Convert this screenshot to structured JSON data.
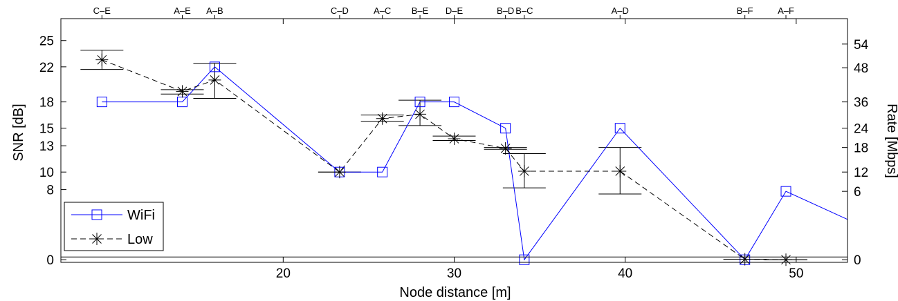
{
  "chart_data": {
    "type": "line",
    "xlabel": "Node distance [m]",
    "ylabel": "SNR [dB]",
    "y2label": "Rate [Mbps]",
    "xlim": [
      7,
      53
    ],
    "ylim": [
      -0.3,
      27.5
    ],
    "grid": false,
    "legend_position": "bottom-left",
    "x_ticks": [
      20,
      30,
      40,
      50
    ],
    "y_ticks": [
      0,
      8,
      10,
      13,
      15,
      18,
      22,
      25
    ],
    "y2_ticks": [
      {
        "snr": 0,
        "label": "0"
      },
      {
        "snr": 7.8,
        "label": "6"
      },
      {
        "snr": 10,
        "label": "12"
      },
      {
        "snr": 12.8,
        "label": "18"
      },
      {
        "snr": 15,
        "label": "24"
      },
      {
        "snr": 18,
        "label": "36"
      },
      {
        "snr": 21.9,
        "label": "48"
      },
      {
        "snr": 24.6,
        "label": "54"
      }
    ],
    "pair_labels": [
      {
        "x": 9.4,
        "label": "C–E"
      },
      {
        "x": 14.1,
        "label": "A–E"
      },
      {
        "x": 16.0,
        "label": "A–B"
      },
      {
        "x": 23.3,
        "label": "C–D"
      },
      {
        "x": 25.8,
        "label": "A–C"
      },
      {
        "x": 28.0,
        "label": "B–E"
      },
      {
        "x": 30.0,
        "label": "D–E"
      },
      {
        "x": 33.0,
        "label": "B–D"
      },
      {
        "x": 34.1,
        "label": "B–C"
      },
      {
        "x": 39.7,
        "label": "A–D"
      },
      {
        "x": 47.0,
        "label": "B–F"
      },
      {
        "x": 49.4,
        "label": "A–F"
      }
    ],
    "series": [
      {
        "name": "WiFi",
        "color": "#0000ff",
        "line_style": "solid",
        "marker": "square",
        "x": [
          9.4,
          14.1,
          16.0,
          23.3,
          25.8,
          28.0,
          30.0,
          33.0,
          34.1,
          39.7,
          47.0,
          49.4,
          53.0
        ],
        "y": [
          18,
          18,
          22,
          10,
          10,
          18,
          18,
          15,
          0,
          15,
          0,
          7.8,
          4.6
        ],
        "markers_shown": [
          true,
          true,
          true,
          true,
          true,
          true,
          true,
          true,
          true,
          true,
          true,
          true,
          false
        ]
      },
      {
        "name": "Low",
        "color": "#000000",
        "line_style": "dashed",
        "marker": "asterisk",
        "x": [
          9.4,
          14.1,
          16.0,
          23.3,
          25.8,
          28.0,
          30.0,
          33.0,
          34.1,
          39.7,
          47.0,
          49.4
        ],
        "y": [
          22.8,
          19.2,
          20.5,
          10,
          16.1,
          16.6,
          13.8,
          12.7,
          10.1,
          10.1,
          0.05,
          0
        ],
        "err_low": [
          21.7,
          18.9,
          18.4,
          10,
          15.8,
          15.3,
          13.6,
          12.6,
          8.2,
          7.5,
          0.05,
          0
        ],
        "err_high": [
          23.9,
          19.4,
          22.4,
          10,
          16.5,
          18.2,
          14.1,
          12.8,
          12.1,
          12.8,
          0.05,
          0
        ]
      }
    ]
  }
}
